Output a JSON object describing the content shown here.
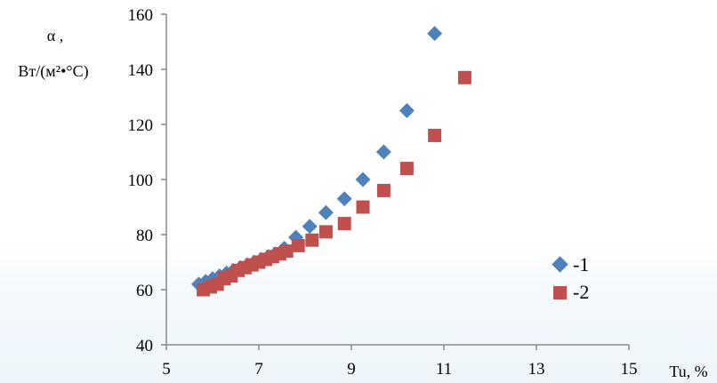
{
  "chart_data": {
    "type": "scatter",
    "title": "",
    "ylabel_line1": "α ,",
    "ylabel_line2": "Вт/(м²•°С)",
    "xlabel": "Tu, %",
    "xlim": [
      5,
      15
    ],
    "ylim": [
      40,
      160
    ],
    "x_ticks": [
      5,
      7,
      9,
      11,
      13,
      15
    ],
    "y_ticks": [
      40,
      60,
      80,
      100,
      120,
      140,
      160
    ],
    "grid": false,
    "legend_position": "bottom-right",
    "series": [
      {
        "name": "-1",
        "marker": "diamond",
        "color": "#4f81bd",
        "x": [
          5.7,
          5.85,
          6.0,
          6.15,
          6.3,
          6.45,
          6.6,
          6.75,
          6.9,
          7.05,
          7.2,
          7.35,
          7.55,
          7.8,
          8.1,
          8.45,
          8.85,
          9.25,
          9.7,
          10.2,
          10.8
        ],
        "y": [
          62,
          63,
          64,
          65,
          66,
          67,
          68,
          69,
          70,
          71,
          72,
          73,
          75,
          79,
          83,
          88,
          93,
          100,
          110,
          125,
          153
        ]
      },
      {
        "name": "-2",
        "marker": "square",
        "color": "#c0504d",
        "x": [
          5.8,
          5.95,
          6.1,
          6.25,
          6.4,
          6.55,
          6.7,
          6.85,
          7.0,
          7.15,
          7.3,
          7.45,
          7.6,
          7.85,
          8.15,
          8.45,
          8.85,
          9.25,
          9.7,
          10.2,
          10.8,
          11.45
        ],
        "y": [
          60,
          61,
          62,
          64,
          65,
          67,
          68,
          69,
          70,
          71,
          72,
          73,
          74,
          76,
          78,
          81,
          84,
          90,
          96,
          104,
          116,
          137
        ]
      }
    ]
  }
}
